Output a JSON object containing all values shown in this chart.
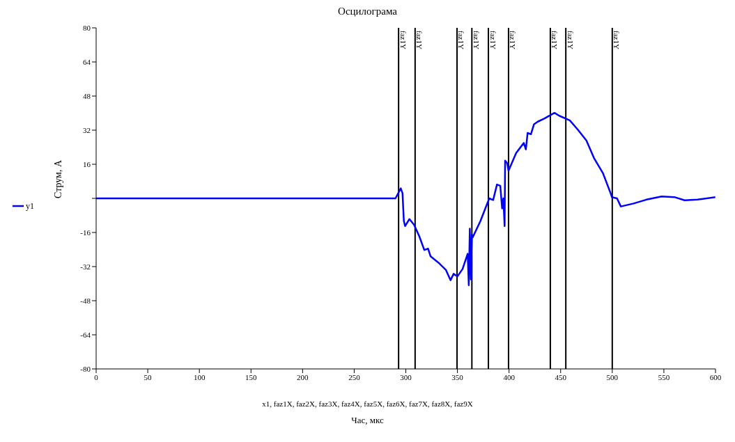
{
  "chart_data": {
    "type": "line",
    "title": "Осцилограма",
    "xlabel": "Час, мкс",
    "ylabel": "Струм, А",
    "annotations": [
      "x1, faz1X, faz2X, faz3X, faz4X, faz5X, faz6X, faz7X, faz8X, faz9X"
    ],
    "xlim": [
      0,
      600
    ],
    "xticks": [
      0,
      50,
      100,
      150,
      200,
      250,
      300,
      350,
      400,
      450,
      500,
      550,
      600
    ],
    "ylim": [
      -80,
      80
    ],
    "yticks": [
      -80,
      -64,
      -48,
      -32,
      -16,
      {
        "value": 0,
        "label": null
      },
      16,
      32,
      48,
      64,
      80
    ],
    "legend": "left",
    "marker": "none",
    "line_style": "solid",
    "series": [
      {
        "name": "y1",
        "color": "#0000ff",
        "x": [
          0,
          290,
          295.1,
          296.8,
          298.1,
          299.3,
          303.5,
          308,
          313,
          317.9,
          321.6,
          324,
          331.5,
          338.9,
          343.3,
          346.3,
          350,
          355,
          359.9,
          361,
          362,
          363,
          364,
          364.8,
          372.3,
          378.4,
          380.9,
          384.6,
          388.3,
          391.5,
          393.3,
          394.5,
          395.7,
          396.2,
          398.2,
          399.5,
          406.9,
          414.3,
          416.3,
          418,
          421.2,
          424.2,
          427.9,
          434.1,
          444,
          448.9,
          458.8,
          466.2,
          474.9,
          482.3,
          491,
          498.4,
          499.6,
          504.6,
          508.3,
          520.6,
          533,
          547.8,
          560.2,
          570.1,
          582.5,
          599.8
        ],
        "values": [
          0,
          0,
          4.7,
          2.4,
          -10.6,
          -13,
          -9.7,
          -12.4,
          -17.7,
          -24.2,
          -23.6,
          -27.2,
          -30.1,
          -33.6,
          -38.4,
          -35.4,
          -36.6,
          -33.1,
          -26,
          -40.7,
          -14.2,
          -38,
          -17,
          -18.3,
          -10.6,
          -3,
          0,
          -0.8,
          6.5,
          5.9,
          -4.7,
          0,
          -13,
          17.7,
          16.5,
          13,
          21.3,
          26,
          23,
          30.7,
          30.1,
          34.8,
          36,
          37.4,
          40.1,
          38.7,
          36.6,
          32.5,
          27.2,
          18.9,
          11.8,
          2.4,
          0.6,
          0,
          -3.8,
          -2.4,
          -0.6,
          0.9,
          0.6,
          -0.9,
          -0.6,
          0.6
        ]
      }
    ],
    "ref_lines": [
      {
        "axis": "x",
        "value": 293,
        "label": "faz1Y",
        "color": "#000000",
        "line_style": "solid"
      },
      {
        "axis": "x",
        "value": 309,
        "label": "faz1Y",
        "color": "#000000",
        "line_style": "solid"
      },
      {
        "axis": "x",
        "value": 349.6,
        "label": "faz1Y",
        "color": "#000000",
        "line_style": "solid"
      },
      {
        "axis": "x",
        "value": 364,
        "label": "faz1Y",
        "color": "#000000",
        "line_style": "solid"
      },
      {
        "axis": "x",
        "value": 380,
        "label": "faz1Y",
        "color": "#000000",
        "line_style": "solid"
      },
      {
        "axis": "x",
        "value": 399.5,
        "label": "faz1Y",
        "color": "#000000",
        "line_style": "solid"
      },
      {
        "axis": "x",
        "value": 440,
        "label": "faz1Y",
        "color": "#000000",
        "line_style": "solid"
      },
      {
        "axis": "x",
        "value": 455,
        "label": "faz1Y",
        "color": "#000000",
        "line_style": "solid"
      },
      {
        "axis": "x",
        "value": 500,
        "label": "faz1Y",
        "color": "#000000",
        "line_style": "solid"
      }
    ]
  }
}
